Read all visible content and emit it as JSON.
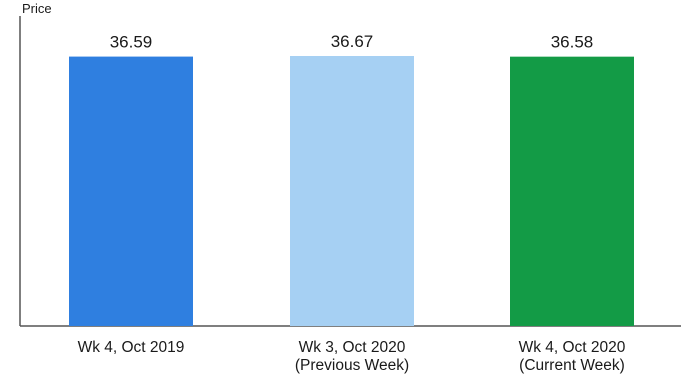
{
  "chart_data": {
    "type": "bar",
    "ylabel": "Price",
    "categories": [
      [
        "Wk 4, Oct 2019"
      ],
      [
        "Wk 3, Oct 2020",
        "(Previous Week)"
      ],
      [
        "Wk 4, Oct 2020",
        "(Current Week)"
      ]
    ],
    "values": [
      36.59,
      36.67,
      36.58
    ],
    "value_labels": [
      "36.59",
      "36.67",
      "36.58"
    ],
    "colors": [
      "#2f7fe0",
      "#a6d0f3",
      "#139b46"
    ],
    "ylim": [
      0,
      40
    ],
    "grid": false,
    "legend": "none"
  }
}
